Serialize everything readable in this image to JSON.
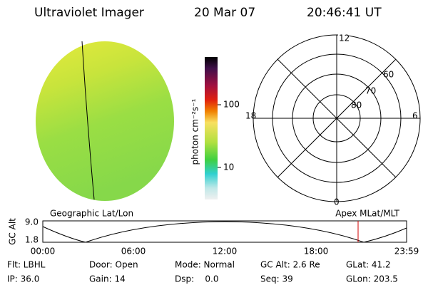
{
  "header": {
    "title": "Ultraviolet Imager",
    "date": "20 Mar 07",
    "time": "20:46:41 UT"
  },
  "colorbar": {
    "label": "photon cm⁻²s⁻¹",
    "ticks": [
      "100",
      "10"
    ]
  },
  "polar": {
    "mlt_labels": [
      "12",
      "18",
      "6",
      "0"
    ],
    "lat_labels": [
      "60",
      "70",
      "80"
    ]
  },
  "orbit": {
    "left_label": "Geographic Lat/Lon",
    "right_label": "Apex MLat/MLT",
    "y_label": "GC Alt",
    "y_ticks": [
      "9.0",
      "1.8"
    ],
    "x_ticks": [
      "00:00",
      "06:00",
      "12:00",
      "18:00",
      "23:59"
    ]
  },
  "info": {
    "rows": [
      [
        "Flt: LBHL",
        "Door: Open",
        "Mode: Normal",
        "GC Alt: 2.6 Re",
        "GLat: 41.2"
      ],
      [
        "IP: 36.0",
        "Gain: 14",
        "Dsp:    0.0",
        "Seq: 39",
        "GLon: 203.5"
      ]
    ]
  }
}
